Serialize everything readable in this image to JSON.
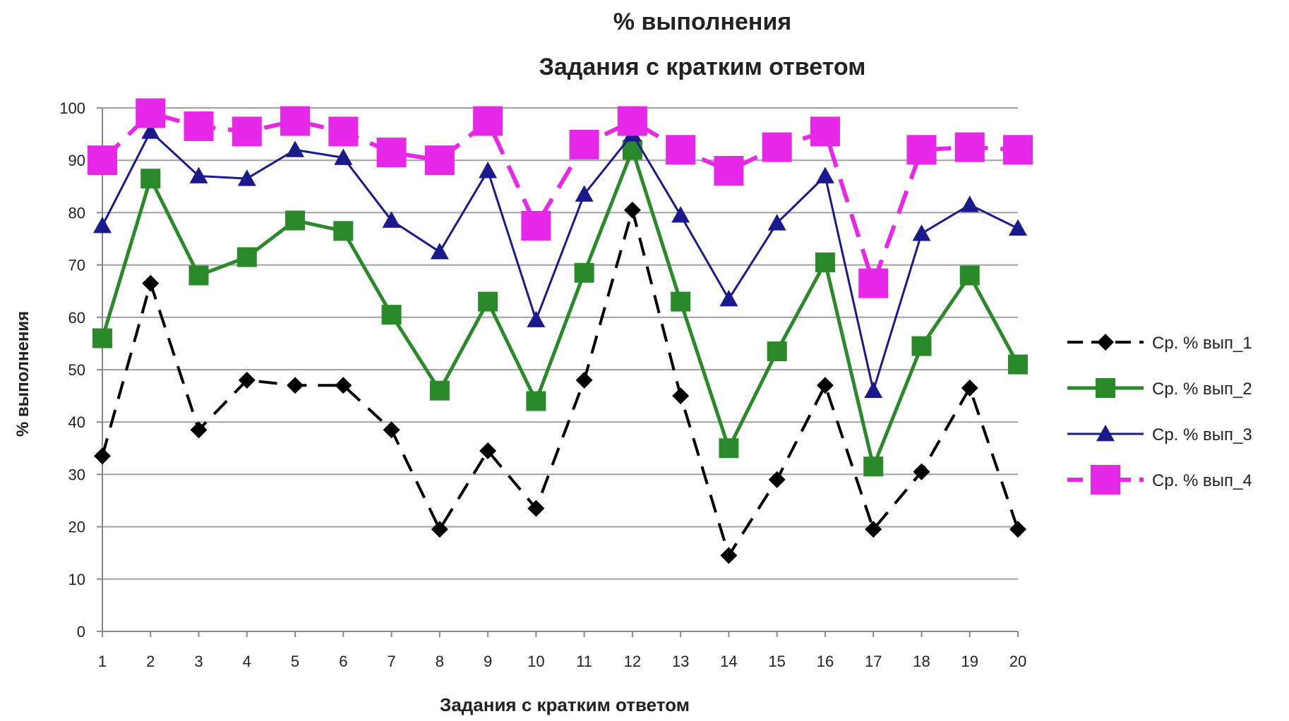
{
  "chart_data": {
    "type": "line",
    "title": "% выполнения",
    "subtitle": "Задания с кратким ответом",
    "xlabel": "Задания с кратким ответом",
    "ylabel": "% выполнения",
    "ylim": [
      0,
      100
    ],
    "yticks": [
      "0",
      "10",
      "20",
      "30",
      "40",
      "50",
      "60",
      "70",
      "80",
      "90",
      "100"
    ],
    "categories": [
      "1",
      "2",
      "3",
      "4",
      "5",
      "6",
      "7",
      "8",
      "9",
      "10",
      "11",
      "12",
      "13",
      "14",
      "15",
      "16",
      "17",
      "18",
      "19",
      "20"
    ],
    "grid": "horizontal",
    "legend_position": "right",
    "series": [
      {
        "name": "Ср. % вып_1",
        "color": "#000000",
        "marker": "diamond",
        "line": "dashed",
        "values": [
          33.5,
          66.5,
          38.5,
          48,
          47,
          47,
          38.5,
          19.5,
          34.5,
          23.5,
          48,
          80.5,
          45,
          14.5,
          29,
          47,
          19.5,
          30.5,
          46.5,
          19.5
        ]
      },
      {
        "name": "Ср. % вып_2",
        "color": "#2a8a2a",
        "marker": "square",
        "line": "solid",
        "values": [
          56,
          86.5,
          68,
          71.5,
          78.5,
          76.5,
          60.5,
          46,
          63,
          44,
          68.5,
          92,
          63,
          35,
          53.5,
          70.5,
          31.5,
          54.5,
          68,
          51
        ]
      },
      {
        "name": "Ср. % вып_3",
        "color": "#1a1a8c",
        "marker": "triangle",
        "line": "solid",
        "values": [
          77.5,
          95.5,
          87,
          86.5,
          92,
          90.5,
          78.5,
          72.5,
          88,
          59.5,
          83.5,
          95,
          79.5,
          63.5,
          78,
          87,
          46,
          76,
          81.5,
          77
        ]
      },
      {
        "name": "Ср. % вып_4",
        "color": "#e828e8",
        "marker": "square",
        "line": "dashed",
        "values": [
          90,
          99,
          96.5,
          95.5,
          97.5,
          95.5,
          91.5,
          90,
          97.5,
          77.5,
          93,
          97.5,
          92,
          88,
          92.5,
          95.5,
          66.5,
          92,
          92.5,
          92
        ]
      }
    ]
  }
}
